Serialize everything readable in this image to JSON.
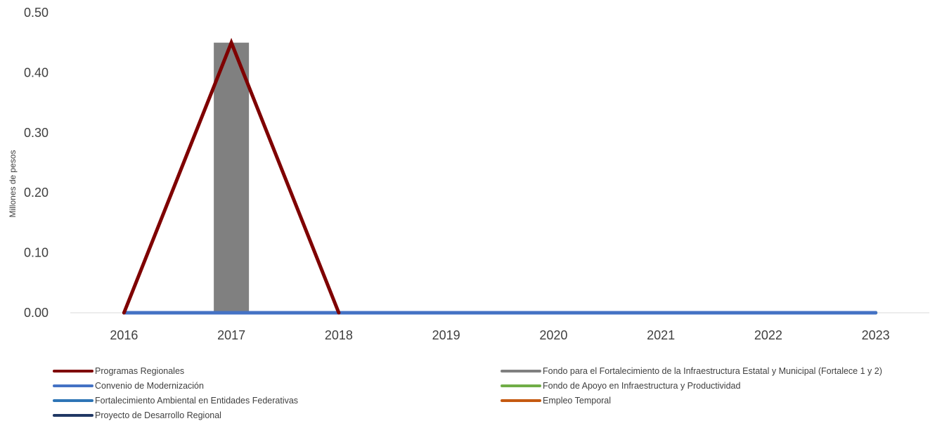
{
  "chart_data": {
    "type": "bar",
    "ylabel": "Millones de pesos",
    "ylim": [
      0,
      0.5
    ],
    "yticks": [
      "0.00",
      "0.10",
      "0.20",
      "0.30",
      "0.40",
      "0.50"
    ],
    "grid": false,
    "legend_position": "bottom",
    "categories": [
      "2016",
      "2017",
      "2018",
      "2019",
      "2020",
      "2021",
      "2022",
      "2023"
    ],
    "series": [
      {
        "name": "Fondo para el Fortalecimiento de la Infraestructura Estatal y Municipal (Fortalece 1 y 2)",
        "kind": "bar",
        "color": "#808080",
        "values": [
          0,
          0.45,
          0,
          0,
          0,
          0,
          0,
          0
        ]
      },
      {
        "name": "Programas Regionales",
        "kind": "line",
        "color": "#7f0000",
        "values": [
          0,
          0.45,
          0,
          null,
          null,
          null,
          null,
          null
        ]
      },
      {
        "name": "Convenio de Modernización",
        "kind": "line",
        "color": "#4472c4",
        "values": [
          0,
          0,
          0,
          0,
          0,
          0,
          0,
          0
        ]
      },
      {
        "name": "Fondo de Apoyo en Infraestructura y Productividad",
        "kind": "line",
        "color": "#70ad47",
        "values": [
          0,
          0,
          0,
          0,
          0,
          0,
          0,
          0
        ]
      },
      {
        "name": "Fortalecimiento Ambiental en Entidades Federativas",
        "kind": "line",
        "color": "#2e75b6",
        "values": [
          0,
          0,
          0,
          0,
          0,
          0,
          0,
          0
        ]
      },
      {
        "name": "Empleo Temporal",
        "kind": "line",
        "color": "#c55a11",
        "values": [
          0,
          0,
          0,
          0,
          0,
          0,
          0,
          0
        ]
      },
      {
        "name": "Proyecto de Desarrollo Regional",
        "kind": "line",
        "color": "#203864",
        "values": [
          0,
          0,
          0,
          0,
          0,
          0,
          0,
          0
        ]
      }
    ],
    "legend_order": [
      "Programas Regionales",
      "Fondo para el Fortalecimiento de la Infraestructura Estatal y Municipal (Fortalece 1 y 2)",
      "Convenio de Modernización",
      "Fondo de Apoyo en Infraestructura y Productividad",
      "Fortalecimiento Ambiental en Entidades Federativas",
      "Empleo Temporal",
      "Proyecto de Desarrollo Regional"
    ]
  }
}
